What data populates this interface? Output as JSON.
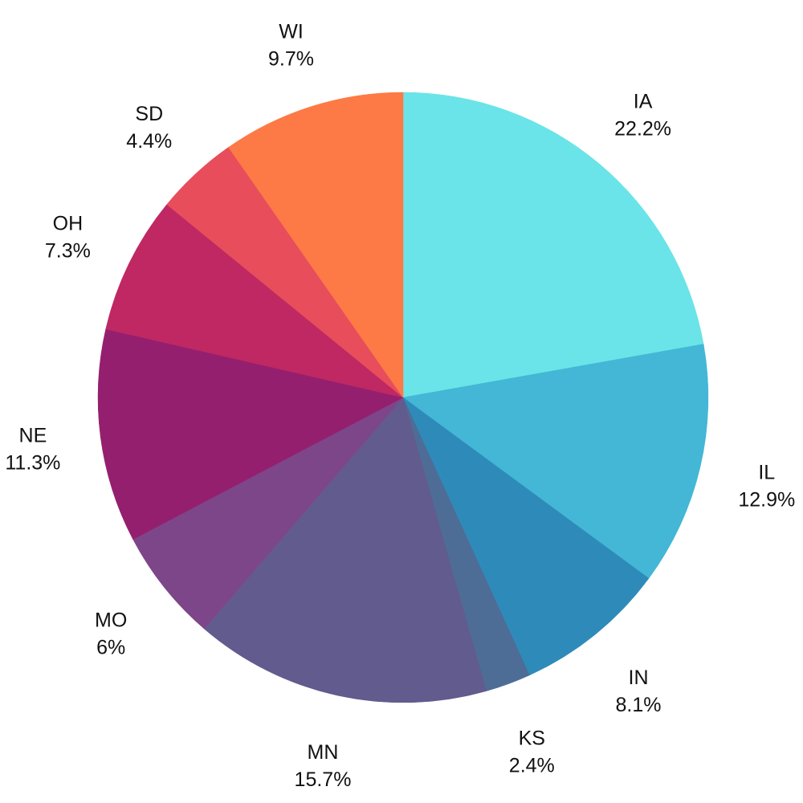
{
  "chart_data": {
    "type": "pie",
    "start_angle_deg": 0,
    "direction": "clockwise",
    "slices": [
      {
        "label": "IA",
        "value": 22.2,
        "value_label": "22.2%",
        "color": "#6ae4e8"
      },
      {
        "label": "IL",
        "value": 12.9,
        "value_label": "12.9%",
        "color": "#43b7d5"
      },
      {
        "label": "IN",
        "value": 8.1,
        "value_label": "8.1%",
        "color": "#2e8bb9"
      },
      {
        "label": "KS",
        "value": 2.4,
        "value_label": "2.4%",
        "color": "#4d6d97"
      },
      {
        "label": "MN",
        "value": 15.7,
        "value_label": "15.7%",
        "color": "#625b8e"
      },
      {
        "label": "MO",
        "value": 6.0,
        "value_label": "6%",
        "color": "#7d4689"
      },
      {
        "label": "NE",
        "value": 11.3,
        "value_label": "11.3%",
        "color": "#951f6f"
      },
      {
        "label": "OH",
        "value": 7.3,
        "value_label": "7.3%",
        "color": "#bf2862"
      },
      {
        "label": "SD",
        "value": 4.4,
        "value_label": "4.4%",
        "color": "#e84d5b"
      },
      {
        "label": "WI",
        "value": 9.7,
        "value_label": "9.7%",
        "color": "#fd7946"
      }
    ]
  }
}
